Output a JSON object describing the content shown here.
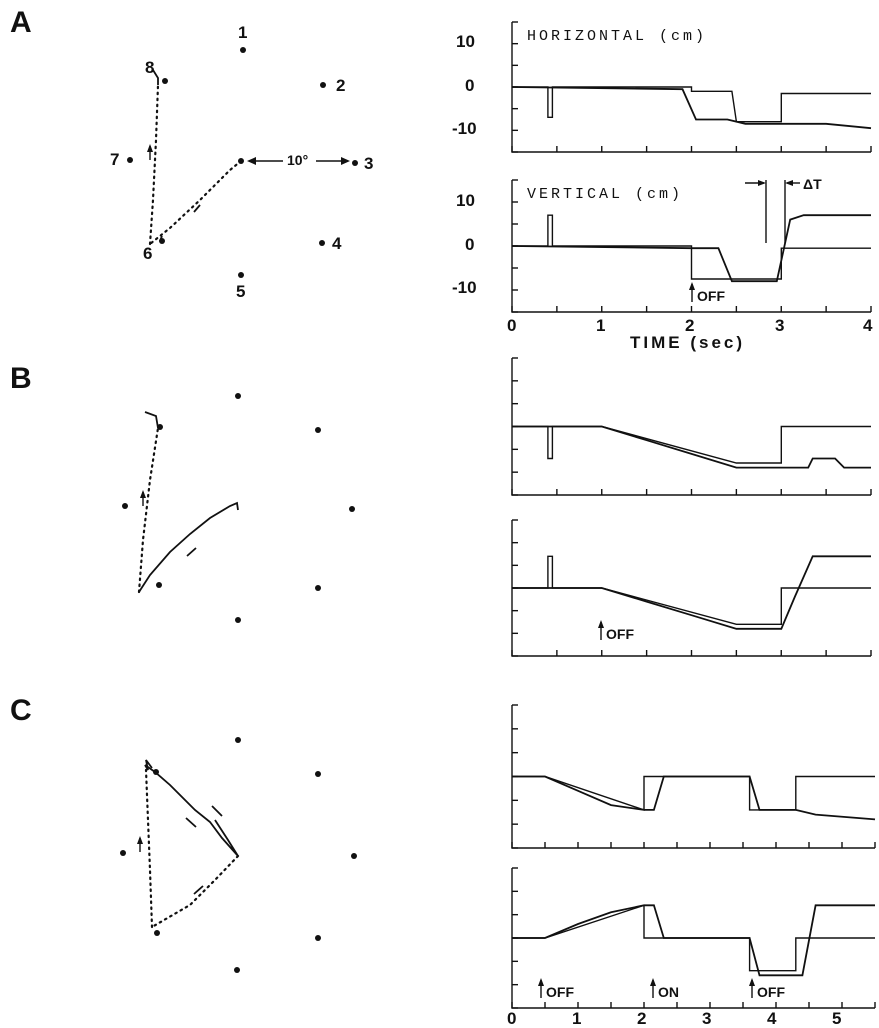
{
  "panels": [
    {
      "letter": "A"
    },
    {
      "letter": "B"
    },
    {
      "letter": "C"
    }
  ],
  "targets": {
    "labels": [
      "1",
      "2",
      "3",
      "4",
      "5",
      "6",
      "7",
      "8"
    ],
    "angle_label": "10°"
  },
  "annotations": {
    "off": "OFF",
    "on": "ON",
    "delta_t": "ΔT"
  },
  "chart_data": [
    {
      "panel": "A",
      "type": "line",
      "title": "HORIZONTAL (cm)",
      "xlabel": "",
      "ylabel": "",
      "ylim": [
        -15,
        15
      ],
      "xlim": [
        0,
        4
      ],
      "y_ticks": [
        "10",
        "0",
        "-10"
      ],
      "series": [
        {
          "x": [
            0,
            0.4,
            0.4,
            0.45,
            0.45,
            2.0,
            2.0,
            2.45,
            2.5,
            3.0,
            3.0,
            4.0
          ],
          "y": [
            0,
            0,
            -7,
            -7,
            0,
            0,
            -1,
            -1,
            -8,
            -8,
            -1.5,
            -1.5
          ]
        },
        {
          "x": [
            0,
            1.9,
            2.05,
            2.4,
            2.6,
            3.0,
            3.5,
            4.0
          ],
          "y": [
            0,
            -0.5,
            -7.5,
            -7.5,
            -8.5,
            -8.5,
            -8.5,
            -9.5
          ]
        }
      ]
    },
    {
      "panel": "A",
      "type": "line",
      "title": "VERTICAL (cm)",
      "xlabel": "TIME (sec)",
      "ylabel": "",
      "ylim": [
        -15,
        15
      ],
      "xlim": [
        0,
        4
      ],
      "x_ticks": [
        "0",
        "1",
        "2",
        "3",
        "4"
      ],
      "y_ticks": [
        "10",
        "0",
        "-10"
      ],
      "series": [
        {
          "x": [
            0,
            0.4,
            0.4,
            0.45,
            0.45,
            2.0,
            2.0,
            3.0,
            3.0,
            4.0
          ],
          "y": [
            0,
            0,
            7,
            7,
            0,
            0,
            -7.5,
            -7.5,
            -0.5,
            -0.5
          ]
        },
        {
          "x": [
            0,
            2.0,
            2.3,
            2.45,
            2.8,
            2.95,
            3.1,
            3.25,
            4.0
          ],
          "y": [
            0,
            -0.5,
            -0.5,
            -8,
            -8,
            -8,
            6,
            7,
            7
          ]
        }
      ]
    },
    {
      "panel": "B",
      "type": "line",
      "title": "",
      "xlabel": "",
      "ylabel": "",
      "ylim": [
        -15,
        15
      ],
      "xlim": [
        0,
        4
      ],
      "series": [
        {
          "x": [
            0,
            0.4,
            0.4,
            0.45,
            0.45,
            1.0,
            2.5,
            3.0,
            3.0,
            4.0
          ],
          "y": [
            0,
            0,
            -7,
            -7,
            0,
            0,
            -8,
            -8,
            0,
            0
          ]
        },
        {
          "x": [
            0,
            1.0,
            1.5,
            2.0,
            2.5,
            3.0,
            3.3,
            3.35,
            3.6,
            3.7,
            4.0
          ],
          "y": [
            0,
            0,
            -3,
            -6,
            -9,
            -9,
            -9,
            -7,
            -7,
            -9,
            -9
          ]
        }
      ]
    },
    {
      "panel": "B",
      "type": "line",
      "title": "",
      "xlabel": "",
      "ylabel": "",
      "ylim": [
        -15,
        15
      ],
      "xlim": [
        0,
        4
      ],
      "series": [
        {
          "x": [
            0,
            0.4,
            0.4,
            0.45,
            0.45,
            1.0,
            2.5,
            3.0,
            3.0,
            4.0
          ],
          "y": [
            0,
            0,
            7,
            7,
            0,
            0,
            -8,
            -8,
            0,
            0
          ]
        },
        {
          "x": [
            0,
            1.0,
            1.5,
            2.0,
            2.5,
            3.0,
            3.15,
            3.35,
            4.0
          ],
          "y": [
            0,
            0,
            -3,
            -6,
            -9,
            -9,
            -2,
            7,
            7
          ]
        }
      ]
    },
    {
      "panel": "C",
      "type": "line",
      "title": "",
      "xlabel": "",
      "ylabel": "",
      "ylim": [
        -15,
        15
      ],
      "xlim": [
        0,
        5.5
      ],
      "series": [
        {
          "x": [
            0,
            0.5,
            2.0,
            2.0,
            3.6,
            3.6,
            4.3,
            4.3,
            5.5
          ],
          "y": [
            0,
            0,
            -7,
            0,
            0,
            -7,
            -7,
            0,
            0
          ]
        },
        {
          "x": [
            0,
            0.5,
            1.0,
            1.5,
            2.0,
            2.15,
            2.3,
            3.6,
            3.75,
            3.9,
            4.3,
            4.6,
            5.5
          ],
          "y": [
            0,
            0,
            -3,
            -6,
            -7,
            -7,
            0,
            0,
            -7,
            -7,
            -7,
            -8,
            -9
          ]
        }
      ]
    },
    {
      "panel": "C",
      "type": "line",
      "title": "",
      "xlabel": "",
      "ylabel": "",
      "ylim": [
        -15,
        15
      ],
      "xlim": [
        0,
        5.5
      ],
      "x_ticks": [
        "0",
        "1",
        "2",
        "3",
        "4",
        "5"
      ],
      "series": [
        {
          "x": [
            0,
            0.5,
            2.0,
            2.0,
            3.6,
            3.6,
            4.3,
            4.3,
            5.5
          ],
          "y": [
            0,
            0,
            7,
            0,
            0,
            -7,
            -7,
            0,
            0
          ]
        },
        {
          "x": [
            0,
            0.5,
            1.0,
            1.5,
            2.0,
            2.15,
            2.3,
            3.6,
            3.75,
            3.95,
            4.4,
            4.6,
            5.5
          ],
          "y": [
            0,
            0,
            3,
            5.5,
            7,
            7,
            0,
            0,
            -8,
            -8,
            -8,
            7,
            7
          ]
        }
      ]
    }
  ]
}
